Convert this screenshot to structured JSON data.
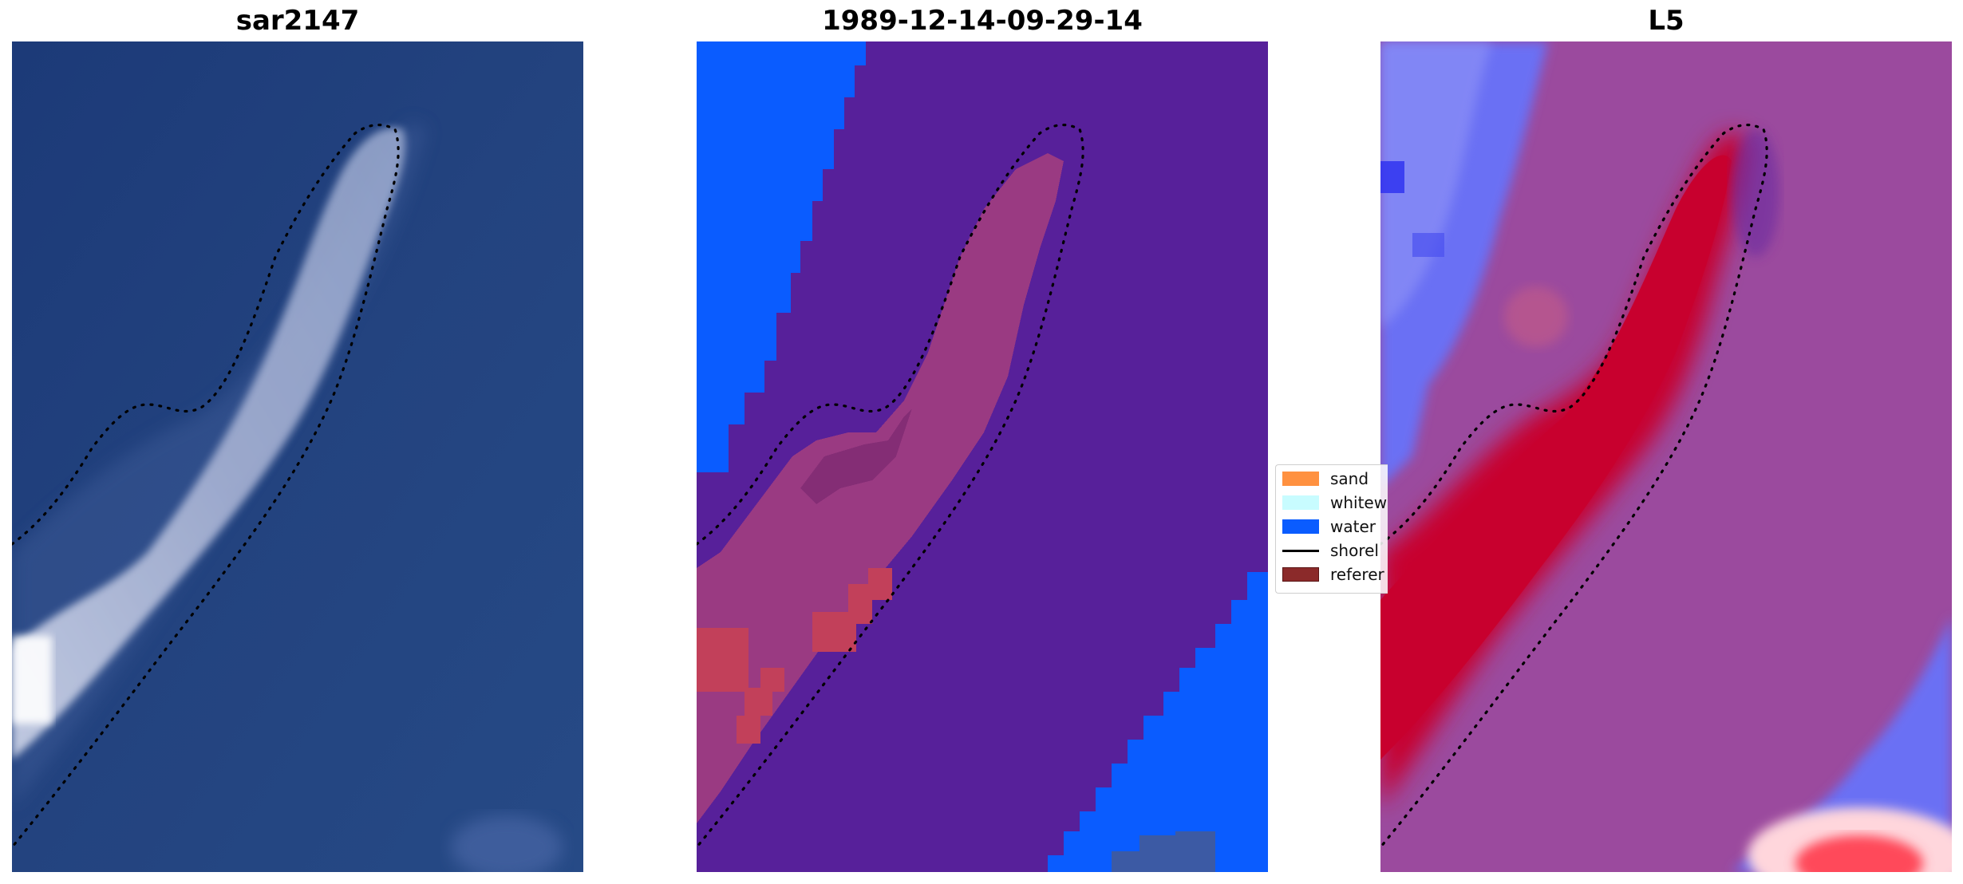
{
  "panels": [
    {
      "title": "sar2147"
    },
    {
      "title": "1989-12-14-09-29-14"
    },
    {
      "title": "L5"
    }
  ],
  "legend": {
    "items": [
      {
        "label": "sand",
        "color": "#ff9140"
      },
      {
        "label": "whitew",
        "color": "#c8fcff"
      },
      {
        "label": "water",
        "color": "#0a5cff"
      },
      {
        "label": "shorel",
        "color": "#000000"
      },
      {
        "label": "referer",
        "color": "#8b2a2a"
      }
    ]
  },
  "colors": {
    "sea_dark": "#1f3e7c",
    "sea_light": "#2a4a86",
    "shoal_white": "#c9cfe8",
    "class_purple": "#57209a",
    "class_water": "#0a5cff",
    "class_reef": "#b9396e",
    "prob_magenta": "#9b4a9e",
    "prob_red": "#c8002e",
    "prob_blue": "#5a5cf6"
  }
}
